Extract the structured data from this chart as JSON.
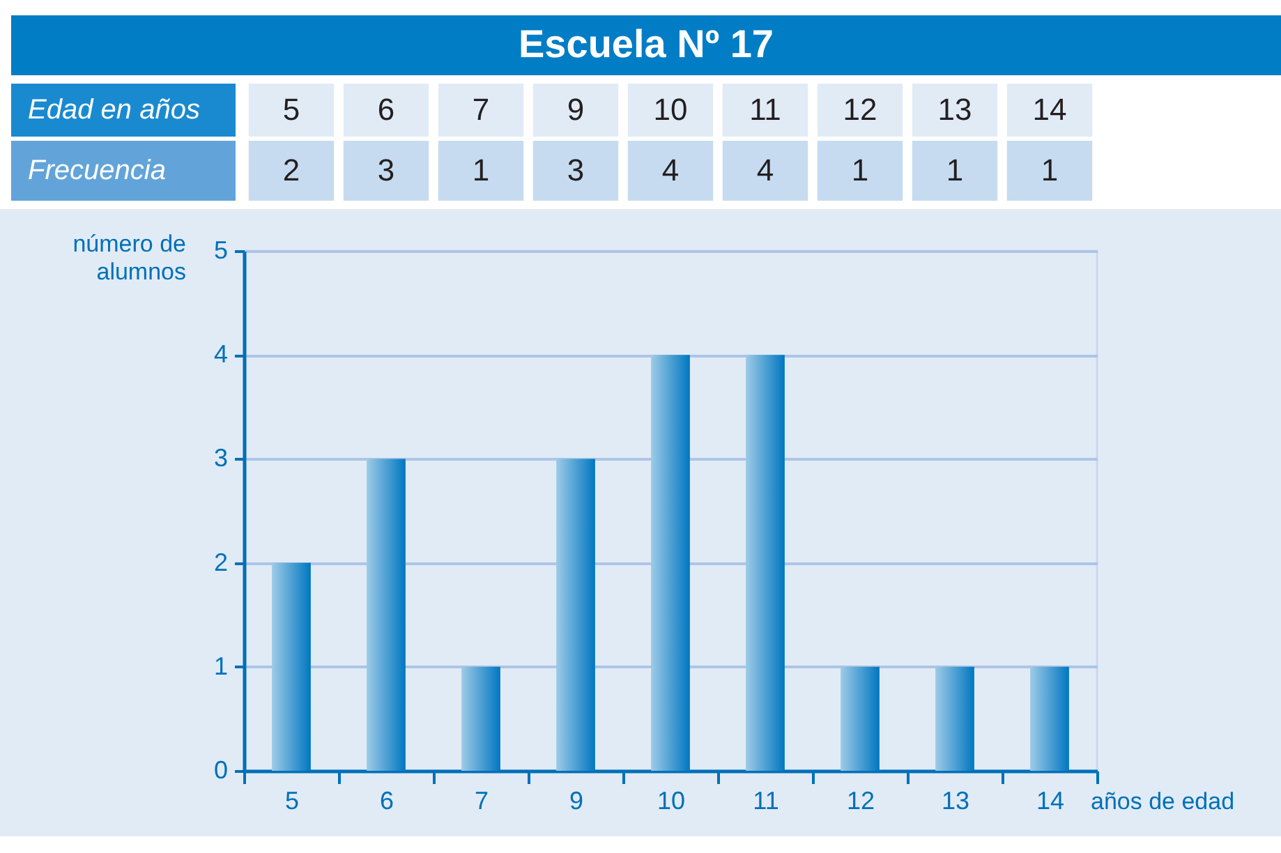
{
  "chart_data": {
    "type": "bar",
    "title": "Escuela Nº 17",
    "categories": [
      "5",
      "6",
      "7",
      "9",
      "10",
      "11",
      "12",
      "13",
      "14"
    ],
    "values": [
      2,
      3,
      1,
      3,
      4,
      4,
      1,
      1,
      1
    ],
    "color": "#0077c0",
    "xlabel": "años de edad",
    "ylabel": "número de alumnos",
    "ylim": [
      0,
      5
    ],
    "yticks": [
      0,
      1,
      2,
      3,
      4,
      5
    ],
    "grid": "y",
    "data_labels": true,
    "annotations": [
      "Edad en años",
      "Frecuencia"
    ]
  }
}
